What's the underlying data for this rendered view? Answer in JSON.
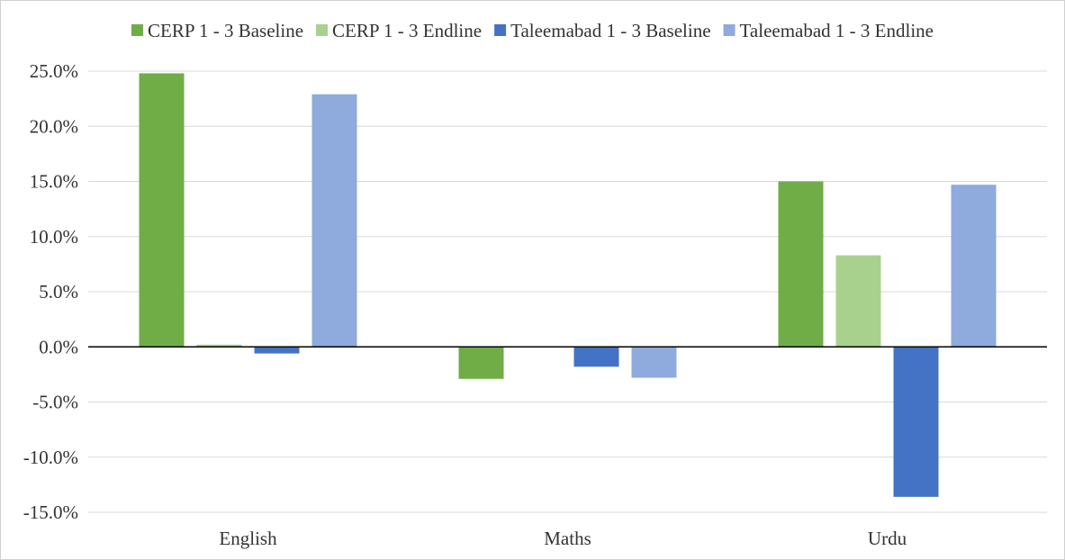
{
  "chart_data": {
    "type": "bar",
    "title": "",
    "xlabel": "",
    "ylabel": "",
    "categories": [
      "English",
      "Maths",
      "Urdu"
    ],
    "series": [
      {
        "name": "CERP 1 - 3 Baseline",
        "color": "#70ad47",
        "values": [
          24.8,
          -2.9,
          15.0
        ]
      },
      {
        "name": "CERP 1 - 3 Endline",
        "color": "#a9d18e",
        "values": [
          0.2,
          0.0,
          8.3
        ]
      },
      {
        "name": "Taleemabad 1 - 3 Baseline",
        "color": "#4472c4",
        "values": [
          -0.6,
          -1.8,
          -13.6
        ]
      },
      {
        "name": "Taleemabad 1 - 3 Endline",
        "color": "#8faadc",
        "values": [
          22.9,
          -2.8,
          14.7
        ]
      }
    ],
    "ylim": [
      -15,
      25
    ],
    "yticks": [
      25,
      20,
      15,
      10,
      5,
      0,
      -5,
      -10,
      -15
    ],
    "ytick_labels": [
      "25.0%",
      "20.0%",
      "15.0%",
      "10.0%",
      "5.0%",
      "0.0%",
      "-5.0%",
      "-10.0%",
      "-15.0%"
    ],
    "grid": true,
    "legend_position": "top"
  }
}
